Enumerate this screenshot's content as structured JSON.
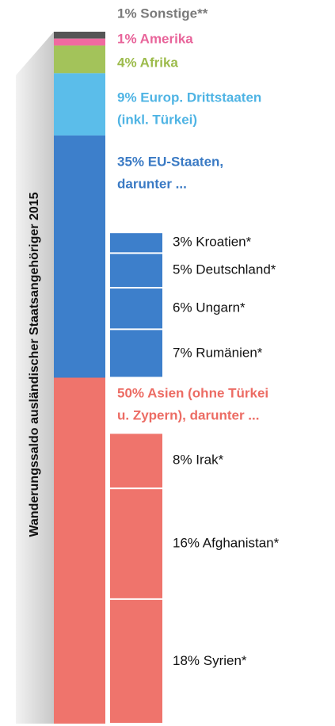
{
  "chart_data": {
    "type": "stacked_breakdown",
    "axis_label": "Wanderungssaldo ausländischer Staatsangehöriger 2015",
    "segments": [
      {
        "value": 1,
        "label": [
          "1% Sonstige**"
        ],
        "color": "#555555",
        "label_color": "#7a7a7a"
      },
      {
        "value": 1,
        "label": [
          "1% Amerika"
        ],
        "color": "#f06aa0",
        "label_color": "#e8649a"
      },
      {
        "value": 4,
        "label": [
          "4% Afrika"
        ],
        "color": "#a3c35a",
        "label_color": "#9cbb4b"
      },
      {
        "value": 9,
        "label": [
          "9% Europ. Drittstaaten",
          "(inkl. Türkei)"
        ],
        "color": "#5bbdea",
        "label_color": "#4fb4e4"
      },
      {
        "value": 35,
        "label": [
          "35% EU-Staaten,",
          "darunter ..."
        ],
        "color": "#3d7fcb",
        "label_color": "#3a7ac4",
        "breakdown": [
          {
            "value": 3,
            "label": "3% Kroatien*"
          },
          {
            "value": 5,
            "label": "5% Deutschland*"
          },
          {
            "value": 6,
            "label": "6% Ungarn*"
          },
          {
            "value": 7,
            "label": "7% Rumänien*"
          }
        ]
      },
      {
        "value": 50,
        "label": [
          "50% Asien (ohne Türkei",
          "u. Zypern), darunter ..."
        ],
        "color": "#ef746c",
        "label_color": "#ec6c64",
        "breakdown": [
          {
            "value": 8,
            "label": "8% Irak*"
          },
          {
            "value": 16,
            "label": "16% Afghanistan*"
          },
          {
            "value": 18,
            "label": "18% Syrien*"
          }
        ]
      }
    ]
  }
}
